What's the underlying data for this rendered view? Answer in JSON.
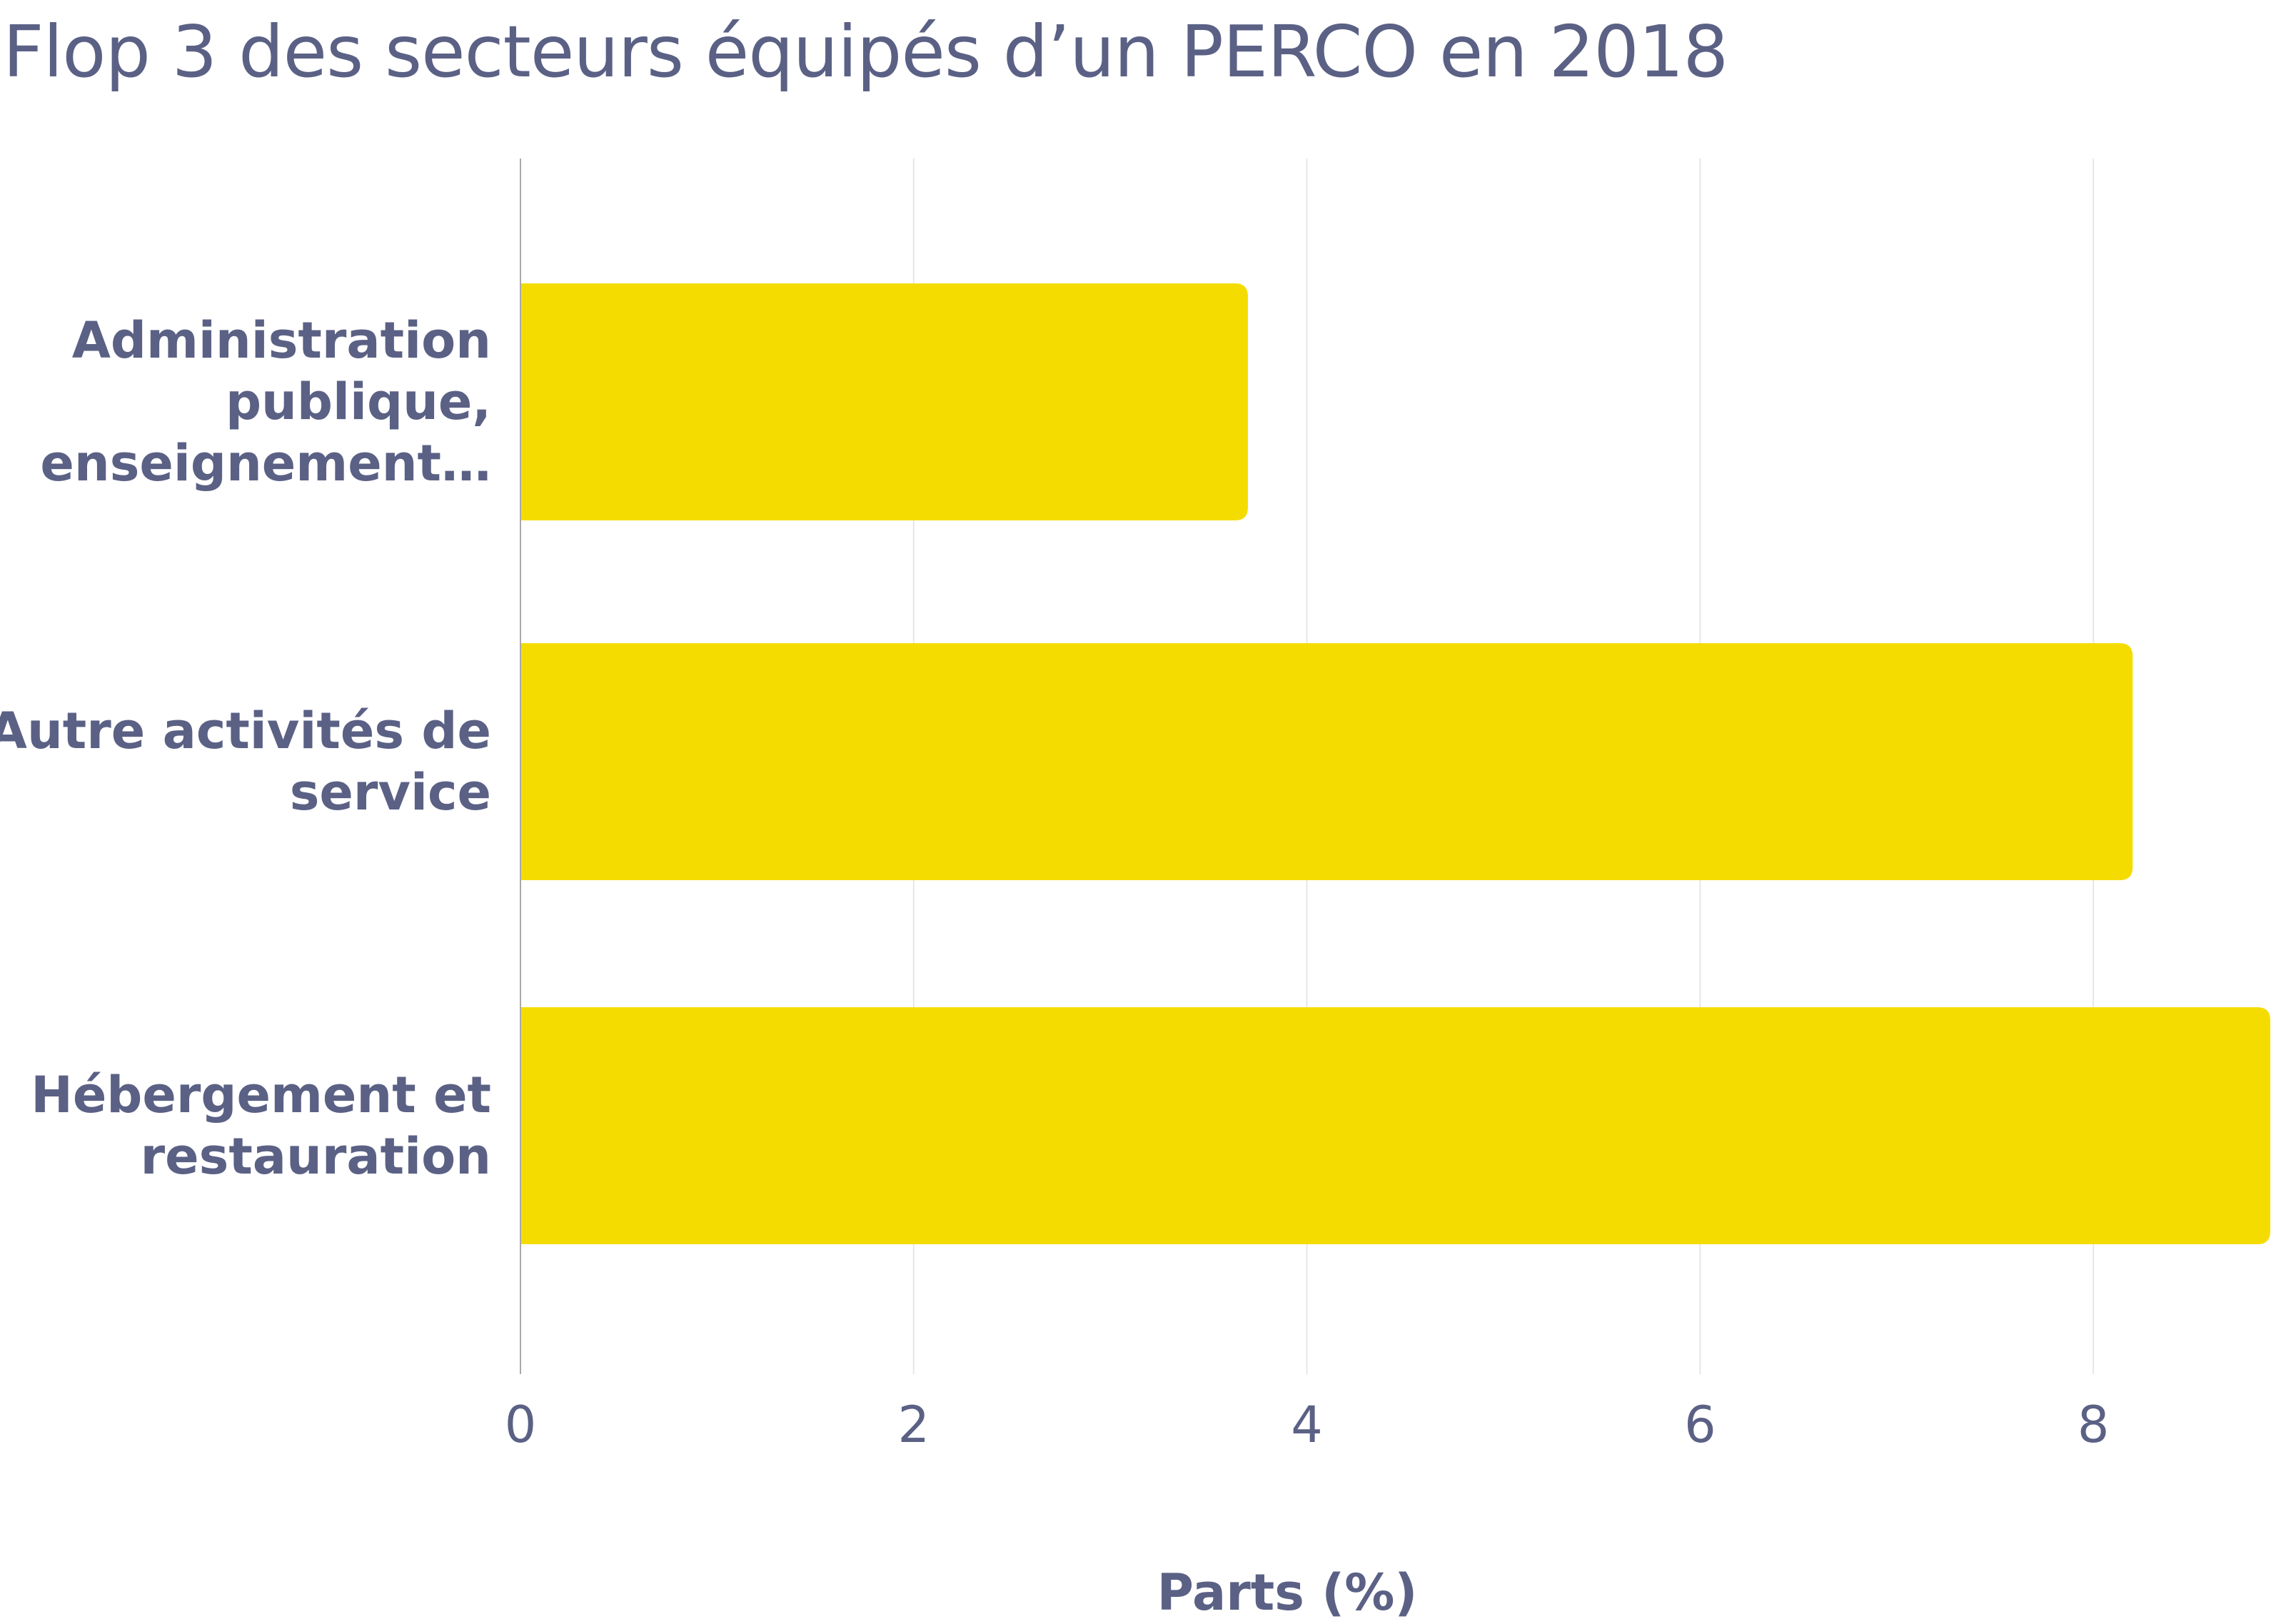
{
  "chart_data": {
    "type": "bar",
    "orientation": "horizontal",
    "title": "Flop 3 des secteurs équipés d’un PERCO en 2018",
    "xlabel": "Parts (%)",
    "ylabel": "",
    "categories": [
      [
        "Administration",
        "publique,",
        "enseignement…"
      ],
      [
        "Autre activités de",
        "service"
      ],
      [
        "Hébergement et",
        "restauration"
      ]
    ],
    "values": [
      3.7,
      8.2,
      8.9
    ],
    "xlim": [
      0,
      8.9
    ],
    "xticks": [
      0,
      2,
      4,
      6,
      8
    ],
    "grid": true,
    "legend": "none",
    "colors": {
      "bar": "#f5dc00",
      "text": "#5b6185",
      "grid": "#e6e6e6",
      "axis": "#a9a9a9"
    }
  }
}
